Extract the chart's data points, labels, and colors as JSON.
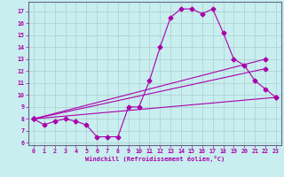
{
  "title": "",
  "xlabel": "Windchill (Refroidissement éolien,°C)",
  "ylabel": "",
  "background_color": "#c8eef0",
  "grid_color": "#aacccc",
  "line_color": "#aa00aa",
  "xlim": [
    -0.5,
    23.5
  ],
  "ylim": [
    5.8,
    17.8
  ],
  "xticks": [
    0,
    1,
    2,
    3,
    4,
    5,
    6,
    7,
    8,
    9,
    10,
    11,
    12,
    13,
    14,
    15,
    16,
    17,
    18,
    19,
    20,
    21,
    22,
    23
  ],
  "yticks": [
    6,
    7,
    8,
    9,
    10,
    11,
    12,
    13,
    14,
    15,
    16,
    17
  ],
  "curve1_x": [
    0,
    1,
    2,
    3,
    4,
    5,
    6,
    7,
    8,
    9,
    10,
    11,
    12,
    13,
    14,
    15,
    16,
    17,
    18,
    19,
    20,
    21,
    22,
    23
  ],
  "curve1_y": [
    8.0,
    7.5,
    7.8,
    8.0,
    7.8,
    7.5,
    6.5,
    6.5,
    6.5,
    9.0,
    9.0,
    11.2,
    14.0,
    16.5,
    17.2,
    17.2,
    16.8,
    17.2,
    15.2,
    13.0,
    12.5,
    11.2,
    10.5,
    9.8
  ],
  "line1_x": [
    0,
    22
  ],
  "line1_y": [
    8.0,
    13.0
  ],
  "line2_x": [
    0,
    22
  ],
  "line2_y": [
    8.0,
    12.2
  ],
  "line3_x": [
    0,
    23
  ],
  "line3_y": [
    8.0,
    9.8
  ]
}
